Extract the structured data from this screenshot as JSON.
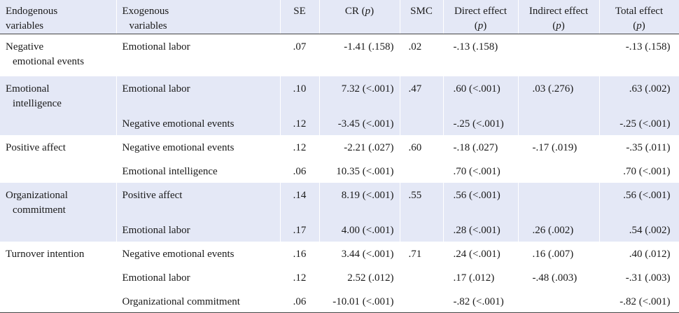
{
  "headers": {
    "endogenous": [
      "Endogenous",
      "variables"
    ],
    "exogenous": [
      "Exogenous",
      "variables"
    ],
    "se": "SE",
    "cr": "CR",
    "smc": "SMC",
    "direct": "Direct effect",
    "indirect": "Indirect effect",
    "total": "Total effect",
    "p": "p"
  },
  "rows": [
    {
      "endo": [
        "Negative",
        "emotional events"
      ],
      "exo": "Emotional labor",
      "se": ".07",
      "cr": "-1.41 (.158)",
      "smc": ".02",
      "direct": "-.13 (.158)",
      "indirect": "",
      "total": "-.13 (.158)"
    },
    {
      "endo": [
        "Emotional",
        "intelligence"
      ],
      "exo": "Emotional labor",
      "se": ".10",
      "cr": "7.32 (<.001)",
      "smc": ".47",
      "direct": ".60 (<.001)",
      "indirect": ".03 (.276)",
      "total": ".63 (.002)"
    },
    {
      "endo": [],
      "exo": "Negative emotional events",
      "se": ".12",
      "cr": "-3.45 (<.001)",
      "smc": "",
      "direct": "-.25 (<.001)",
      "indirect": "",
      "total": "-.25 (<.001)"
    },
    {
      "endo": [
        "Positive affect"
      ],
      "exo": "Negative emotional events",
      "se": ".12",
      "cr": "-2.21 (.027)",
      "smc": ".60",
      "direct": "-.18 (.027)",
      "indirect": "-.17 (.019)",
      "total": "-.35 (.011)"
    },
    {
      "endo": [],
      "exo": "Emotional intelligence",
      "se": ".06",
      "cr": "10.35 (<.001)",
      "smc": "",
      "direct": ".70 (<.001)",
      "indirect": "",
      "total": ".70 (<.001)"
    },
    {
      "endo": [
        "Organizational",
        "commitment"
      ],
      "exo": "Positive affect",
      "se": ".14",
      "cr": "8.19 (<.001)",
      "smc": ".55",
      "direct": ".56 (<.001)",
      "indirect": "",
      "total": ".56 (<.001)"
    },
    {
      "endo": [],
      "exo": "Emotional labor",
      "se": ".17",
      "cr": "4.00 (<.001)",
      "smc": "",
      "direct": ".28 (<.001)",
      "indirect": ".26 (.002)",
      "total": ".54 (.002)"
    },
    {
      "endo": [
        "Turnover intention"
      ],
      "exo": "Negative emotional events",
      "se": ".16",
      "cr": "3.44 (<.001)",
      "smc": ".71",
      "direct": ".24 (<.001)",
      "indirect": ".16 (.007)",
      "total": ".40 (.012)"
    },
    {
      "endo": [],
      "exo": "Emotional labor",
      "se": ".12",
      "cr": "2.52 (.012)",
      "smc": "",
      "direct": ".17 (.012)",
      "indirect": "-.48 (.003)",
      "total": "-.31 (.003)"
    },
    {
      "endo": [],
      "exo": "Organizational commitment",
      "se": ".06",
      "cr": "-10.01 (<.001)",
      "smc": "",
      "direct": "-.82 (<.001)",
      "indirect": "",
      "total": "-.82 (<.001)"
    }
  ]
}
